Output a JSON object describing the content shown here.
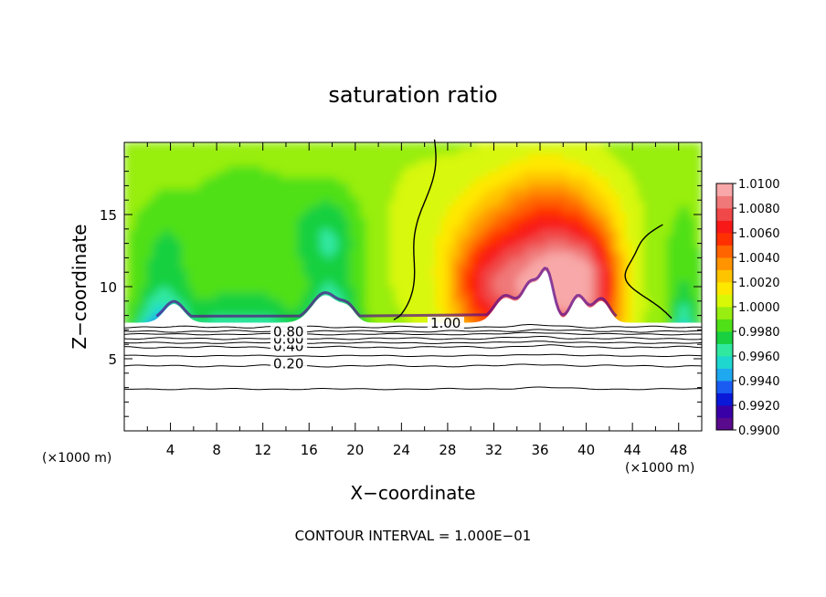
{
  "chart_data": {
    "type": "heatmap",
    "title": "saturation ratio",
    "xlabel": "X−coordinate",
    "ylabel": "Z−coordinate",
    "x_unit_left": "(×1000 m)",
    "x_unit_right": "(×1000 m)",
    "footer": "CONTOUR INTERVAL = 1.000E−01",
    "xlim": [
      0,
      50
    ],
    "ylim": [
      0,
      20
    ],
    "x_ticks": [
      4,
      8,
      12,
      16,
      20,
      24,
      28,
      32,
      36,
      40,
      44,
      48
    ],
    "x_tick_labels": [
      "4",
      "8",
      "12",
      "16",
      "20",
      "24",
      "28",
      "32",
      "36",
      "40",
      "44",
      "48"
    ],
    "y_ticks": [
      5,
      10,
      15
    ],
    "y_tick_labels": [
      "5",
      "10",
      "15"
    ],
    "colorbar": {
      "vmin": 0.99,
      "vmax": 1.01,
      "step": 0.001,
      "labels": [
        "1.0100",
        "1.0080",
        "1.0060",
        "1.0040",
        "1.0020",
        "1.0000",
        "0.9980",
        "0.9960",
        "0.9940",
        "0.9920",
        "0.9900"
      ],
      "colors": [
        "#5a0a8c",
        "#3a00a8",
        "#0a18d8",
        "#1a5cf2",
        "#1ea8f0",
        "#1ed8d0",
        "#30e8a0",
        "#18d040",
        "#50e018",
        "#98ee10",
        "#d8f808",
        "#ffe800",
        "#ffc400",
        "#ff9400",
        "#ff6400",
        "#ff3000",
        "#f81818",
        "#f04848",
        "#f07878",
        "#f8a8a8"
      ]
    },
    "contours": [
      {
        "label": "0.20",
        "level": 0.2,
        "z": 4.5
      },
      {
        "label": "0.40",
        "level": 0.4,
        "z": 5.8
      },
      {
        "label": "0.60",
        "level": 0.6,
        "z": 6.4
      },
      {
        "label": "0.80",
        "level": 0.8,
        "z": 6.9
      },
      {
        "label": "1.00",
        "level": 1.0,
        "z": 7.2
      }
    ],
    "cloud_base_z": 7.5
  }
}
